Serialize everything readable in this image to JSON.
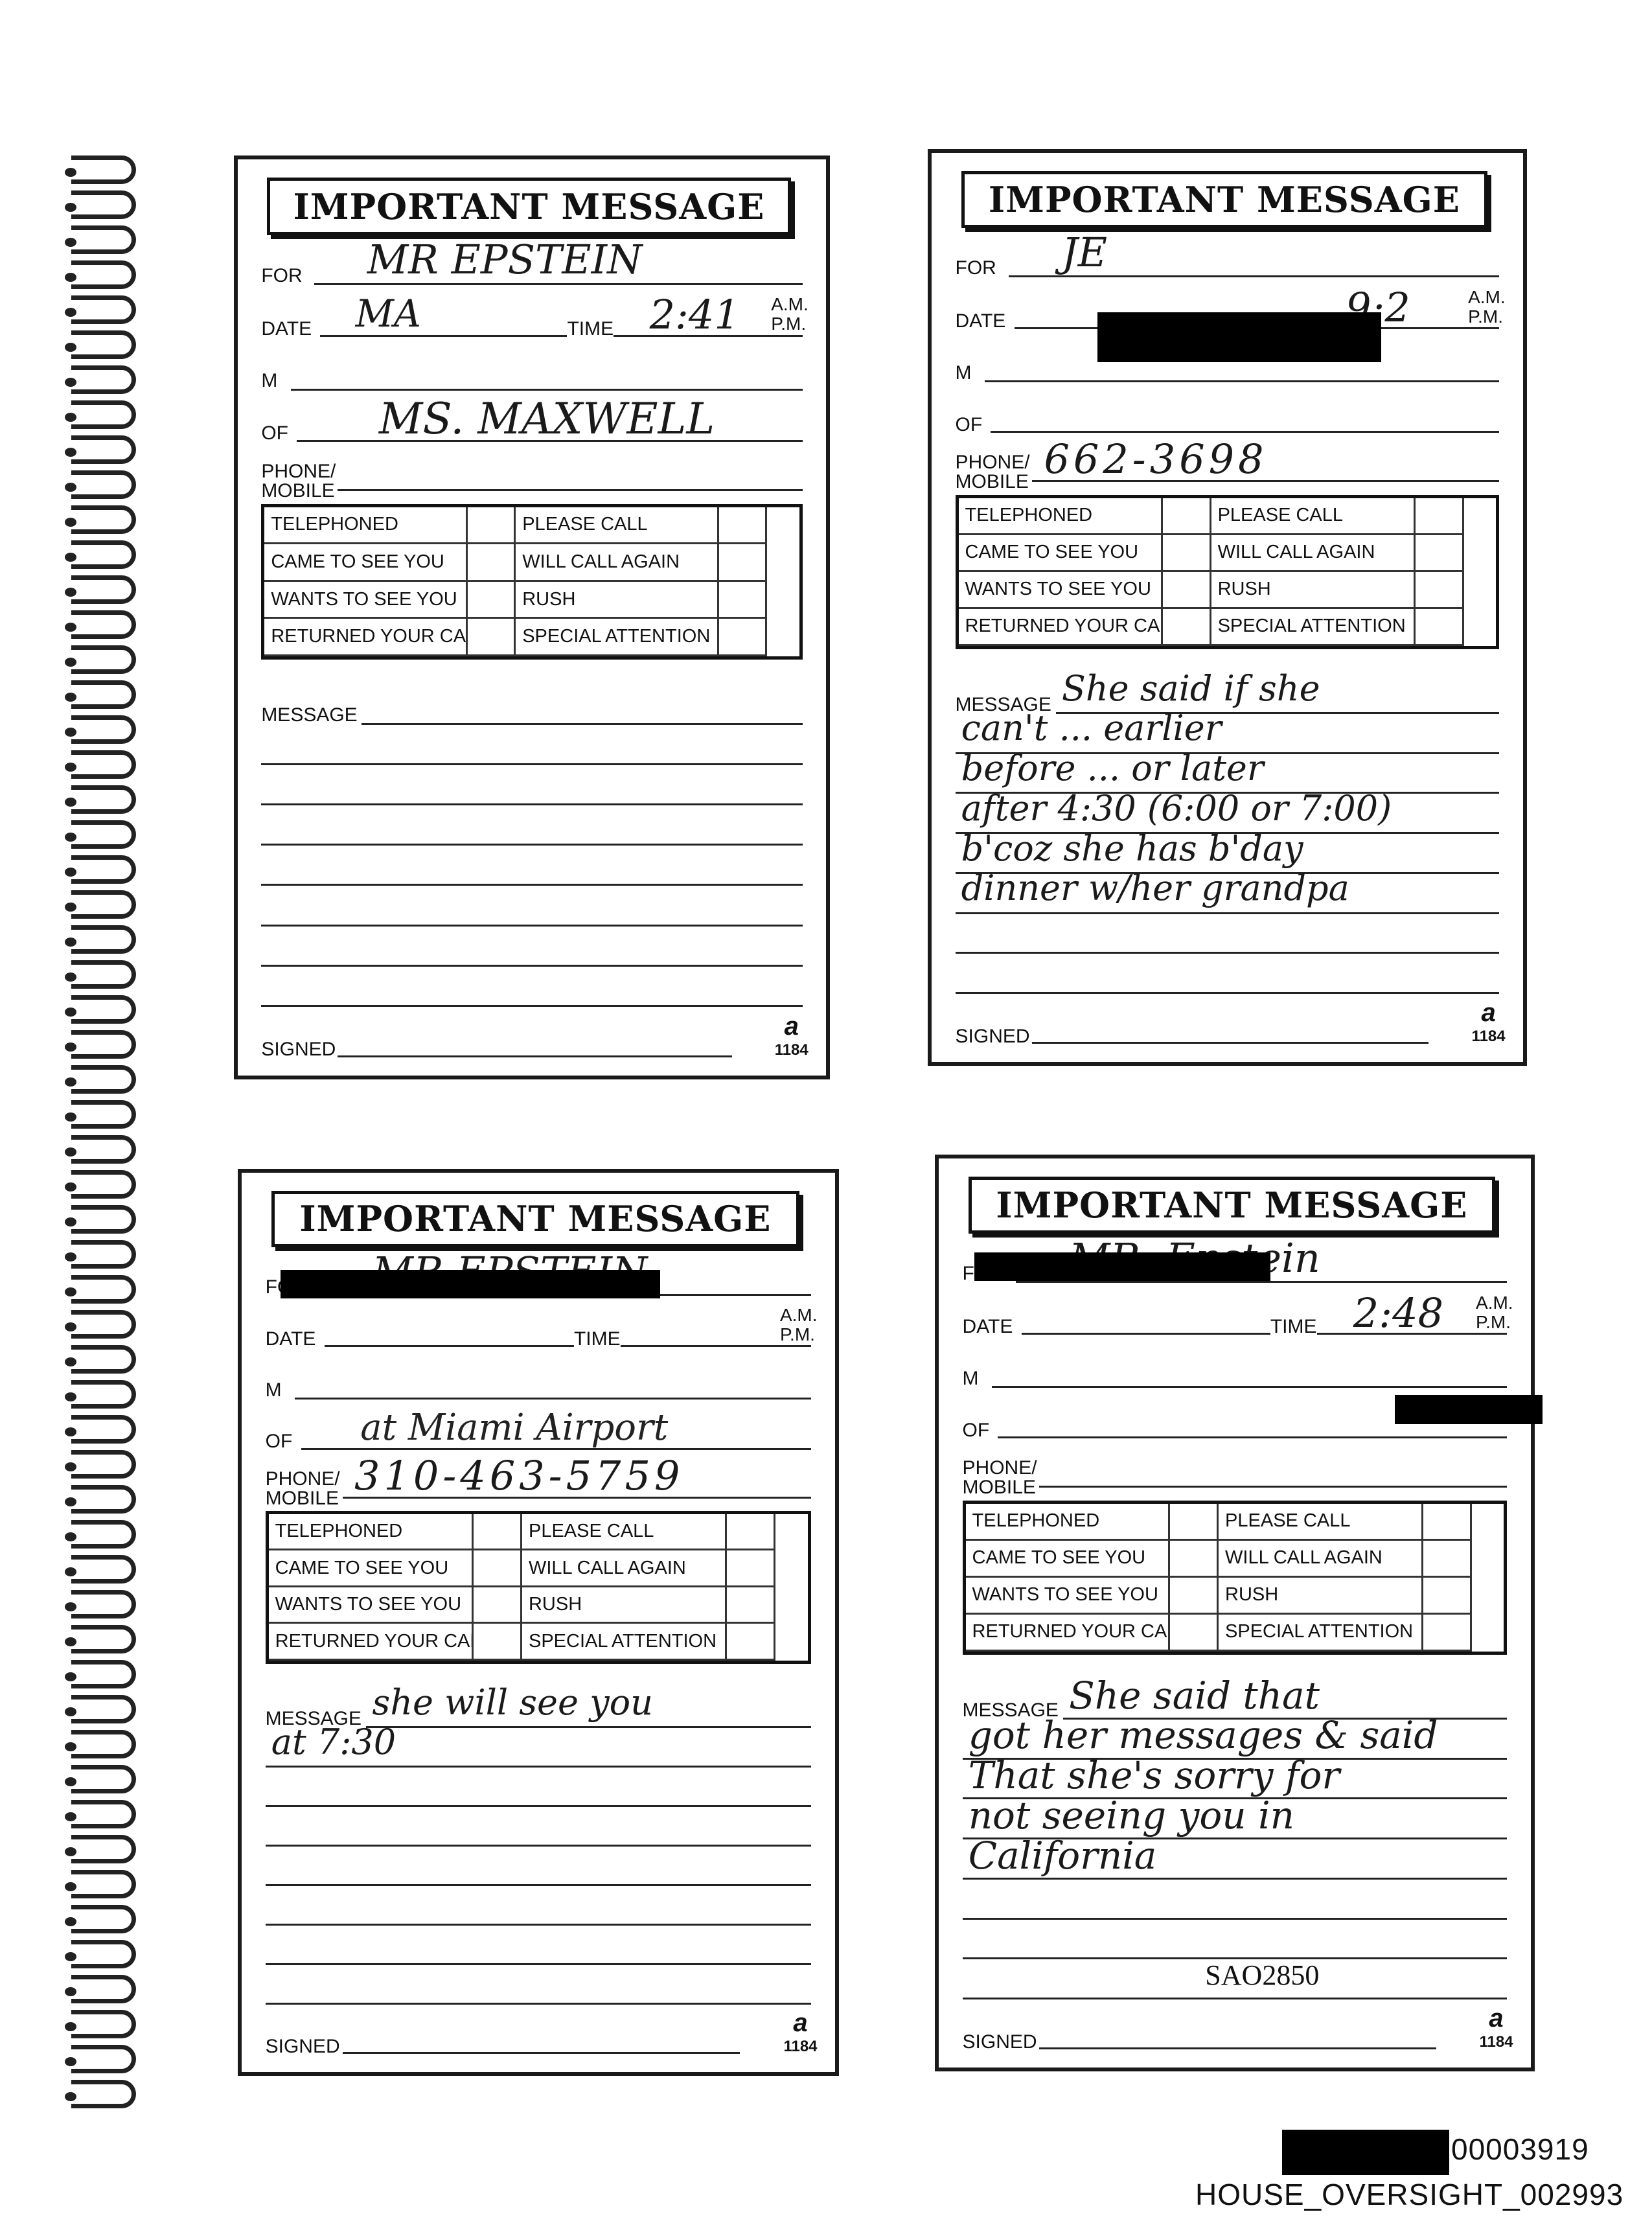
{
  "form": {
    "title": "IMPORTANT MESSAGE",
    "for_label": "FOR",
    "date_label": "DATE",
    "time_label": "TIME",
    "am_label": "A.M.",
    "pm_label": "P.M.",
    "m_label": "M",
    "of_label": "OF",
    "phone_label": "PHONE/",
    "mobile_label": "MOBILE",
    "checkboxes": [
      "TELEPHONED",
      "PLEASE CALL",
      "CAME TO SEE YOU",
      "WILL CALL AGAIN",
      "WANTS TO SEE YOU",
      "RUSH",
      "RETURNED YOUR CALL",
      "SPECIAL ATTENTION"
    ],
    "message_label": "MESSAGE",
    "signed_label": "SIGNED",
    "form_number": "1184",
    "logo_mark": "a"
  },
  "cards": [
    {
      "for_value": "MR EPSTEIN",
      "date_value": "MA",
      "time_value": "2:41",
      "of_value": "MS. MAXWELL",
      "phone_value": "",
      "table_note": "",
      "message_lines": []
    },
    {
      "for_value": "JE",
      "date_value": "",
      "time_value": "9:2",
      "of_value": "",
      "phone_value": "662-3698",
      "table_note": "",
      "message_lines": [
        "She said if she",
        "can't ... earlier",
        "before ... or later",
        "after 4:30 (6:00 or 7:00)",
        "b'coz she has b'day",
        "dinner w/her grandpa"
      ]
    },
    {
      "for_value": "MR EPSTEIN",
      "date_value": "",
      "time_value": "",
      "of_value": "",
      "phone_value": "310-463-5759",
      "table_note": "at Miami Airport",
      "message_lines": [
        "she will see you",
        "at 7:30"
      ]
    },
    {
      "for_value": "MR. Epstein",
      "date_value": "",
      "time_value": "2:48",
      "of_value": "",
      "phone_value": "",
      "table_note": "",
      "message_lines": [
        "She said that",
        "got her messages & said",
        "That she's sorry for",
        "not seeing you in",
        "California"
      ],
      "stamp": "SAO2850"
    }
  ],
  "footer": {
    "bates_number": "00003919",
    "house_id": "HOUSE_OVERSIGHT_002993"
  }
}
